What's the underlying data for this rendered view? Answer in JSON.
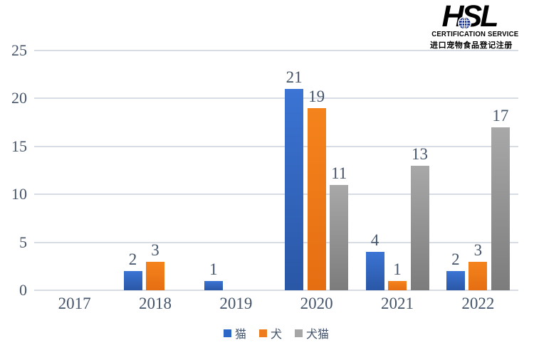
{
  "logo": {
    "wordmark": "HSL",
    "subtitle": "CERTIFICATION SERVICE",
    "tagline": "进口宠物食品登记注册",
    "color": "#1E3A96"
  },
  "chart_data": {
    "type": "bar",
    "title": "",
    "xlabel": "",
    "ylabel": "",
    "categories": [
      "2017",
      "2018",
      "2019",
      "2020",
      "2021",
      "2022"
    ],
    "series": [
      {
        "key": "cat",
        "name": "猫",
        "color": "#2E68C6",
        "gradient": [
          "#3B74D4",
          "#2A57A6"
        ],
        "values": [
          0,
          2,
          1,
          21,
          4,
          2
        ]
      },
      {
        "key": "dog",
        "name": "犬",
        "color": "#EE7C1C",
        "gradient": [
          "#F5831C",
          "#E56E12"
        ],
        "values": [
          0,
          3,
          0,
          19,
          1,
          3
        ]
      },
      {
        "key": "dog-cat",
        "name": "犬猫",
        "color": "#A6A6A6",
        "gradient": [
          "#A8A8A8",
          "#7C7C7C"
        ],
        "values": [
          0,
          0,
          0,
          11,
          13,
          17
        ]
      }
    ],
    "ylim": [
      0,
      25
    ],
    "yticks": [
      0,
      5,
      10,
      15,
      20,
      25
    ],
    "grid": true,
    "legend_position": "bottom",
    "value_labels_shown": true,
    "text_color": "#44546A",
    "gridline_color": "#D8DDE5"
  }
}
